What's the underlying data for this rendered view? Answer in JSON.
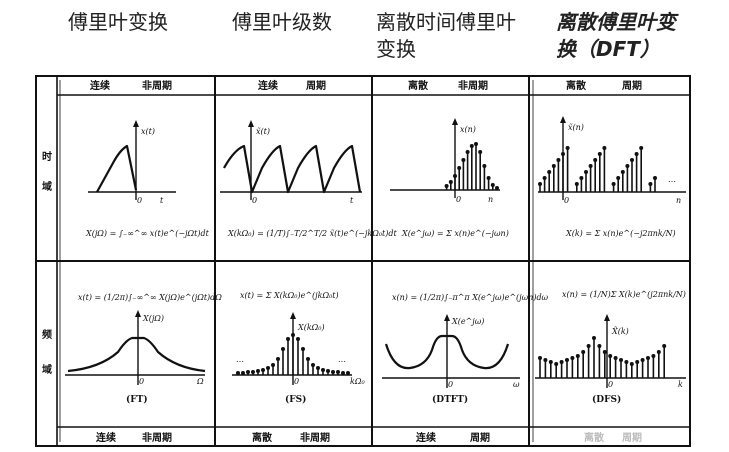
{
  "headers": [
    {
      "text": "傅里叶变换"
    },
    {
      "text": "傅里叶级数"
    },
    {
      "text": "离散时间傅里叶变换"
    },
    {
      "text": "离散傅里叶变换（DFT）"
    }
  ],
  "table": {
    "side_labels": {
      "time": [
        "时",
        "域"
      ],
      "freq": [
        "频",
        "域"
      ]
    },
    "columns": [
      {
        "top": [
          "连续",
          "非周期"
        ],
        "bottom": [
          "连续",
          "非周期"
        ],
        "time_axis_label": "x(t)",
        "time_var": "t",
        "time_formula": "X(jΩ) = ∫₋∞^∞ x(t)e^(−jΩt)dt",
        "freq_formula": "x(t) = (1/2π)∫₋∞^∞ X(jΩ)e^(jΩt)dΩ",
        "freq_axis_label": "X(jΩ)",
        "freq_var": "Ω",
        "caption": "(FT)"
      },
      {
        "top": [
          "连续",
          "周期"
        ],
        "bottom": [
          "离散",
          "非周期"
        ],
        "time_axis_label": "x̃(t)",
        "time_var": "t",
        "time_formula": "X(kΩ₀) = (1/T)∫₋T/2^T/2 x̃(t)e^(−jkΩ₀t)dt",
        "freq_formula": "x(t) = Σ X(kΩ₀)e^(jkΩ₀t)",
        "freq_axis_label": "X(kΩ₀)",
        "freq_var": "kΩ₀",
        "caption": "(FS)"
      },
      {
        "top": [
          "离散",
          "非周期"
        ],
        "bottom": [
          "连续",
          "周期"
        ],
        "time_axis_label": "x(n)",
        "time_var": "n",
        "time_formula": "X(e^jω) = Σ x(n)e^(−jωn)",
        "freq_formula": "x(n) = (1/2π)∫₋π^π X(e^jω)e^(jωn)dω",
        "freq_axis_label": "X(e^jω)",
        "freq_var": "ω",
        "caption": "(DTFT)"
      },
      {
        "top": [
          "离散",
          "周期"
        ],
        "bottom": [
          "离散",
          "周期"
        ],
        "time_axis_label": "x̃(n)",
        "time_var": "n",
        "time_formula": "X(k) = Σ x(n)e^(−j2πnk/N)",
        "freq_formula": "x(n) = (1/N)Σ X(k)e^(j2πnk/N)",
        "freq_axis_label": "X̃(k)",
        "freq_var": "k",
        "caption": "(DFS)"
      }
    ],
    "zero_label": "0",
    "dots_label": "…"
  }
}
